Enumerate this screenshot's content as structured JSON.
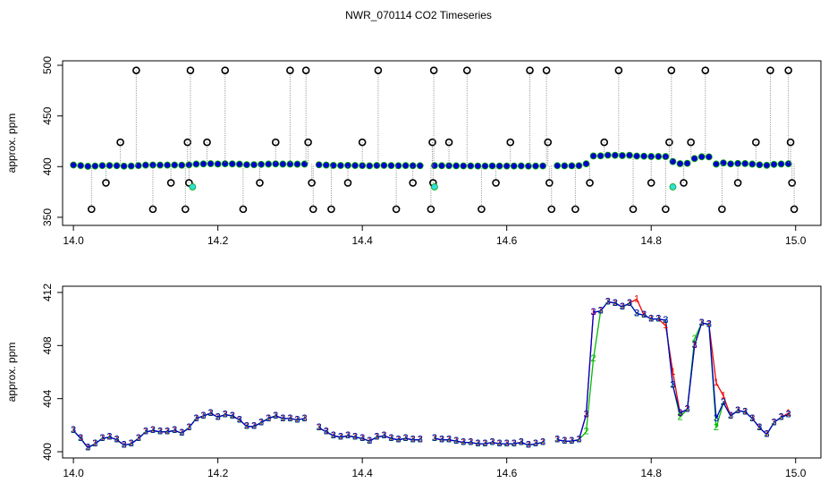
{
  "title": "NWR_070114  CO2 Timeseries",
  "chart_data": [
    {
      "type": "scatter",
      "ylabel": "approx. ppm",
      "xlim": [
        13.985,
        15.035
      ],
      "ylim": [
        342,
        504.4
      ],
      "xticks": [
        {
          "value": 14.0,
          "label": "14.0"
        },
        {
          "value": 14.2,
          "label": "14.2"
        },
        {
          "value": 14.4,
          "label": "14.4"
        },
        {
          "value": 14.6,
          "label": "14.6"
        },
        {
          "value": 14.8,
          "label": "14.8"
        },
        {
          "value": 15.0,
          "label": "15.0"
        }
      ],
      "yticks": [
        350,
        400,
        450,
        500
      ],
      "series": [
        {
          "style": "filled",
          "color": "#0000cc",
          "x": [
            14.0,
            14.01,
            14.02,
            14.03,
            14.04,
            14.05,
            14.06,
            14.07,
            14.08,
            14.09,
            14.1,
            14.11,
            14.12,
            14.13,
            14.14,
            14.15,
            14.16,
            14.17,
            14.18,
            14.19,
            14.2,
            14.21,
            14.22,
            14.23,
            14.24,
            14.25,
            14.26,
            14.27,
            14.28,
            14.29,
            14.3,
            14.31,
            14.32,
            14.33,
            14.34,
            14.35,
            14.36,
            14.37,
            14.38,
            14.39,
            14.4,
            14.41,
            14.42,
            14.43,
            14.44,
            14.45,
            14.46,
            14.47,
            14.48,
            14.49,
            14.5,
            14.51,
            14.52,
            14.53,
            14.54,
            14.55,
            14.56,
            14.57,
            14.58,
            14.59,
            14.6,
            14.61,
            14.62,
            14.63,
            14.64,
            14.65,
            14.66,
            14.67,
            14.68,
            14.69,
            14.7,
            14.71,
            14.72,
            14.73,
            14.74,
            14.75,
            14.76,
            14.77,
            14.78,
            14.79,
            14.8,
            14.81,
            14.82,
            14.83,
            14.84,
            14.85,
            14.86,
            14.87,
            14.88,
            14.89,
            14.9,
            14.91,
            14.92,
            14.93,
            14.94,
            14.95,
            14.96,
            14.97,
            14.98,
            14.99
          ],
          "values": [
            401.6,
            401.0,
            400.3,
            400.6,
            401.0,
            401.1,
            400.9,
            400.5,
            400.6,
            401.0,
            401.5,
            401.6,
            401.5,
            401.5,
            401.6,
            401.4,
            401.8,
            402.5,
            402.7,
            402.9,
            402.6,
            402.8,
            402.7,
            402.4,
            401.9,
            401.9,
            402.2,
            402.5,
            402.7,
            402.5,
            402.5,
            402.4,
            402.5,
            null,
            401.8,
            401.5,
            401.2,
            401.1,
            401.2,
            401.1,
            401.0,
            400.8,
            401.1,
            401.2,
            401.0,
            400.9,
            401.0,
            400.9,
            400.9,
            null,
            401.0,
            400.9,
            400.9,
            400.8,
            400.7,
            400.7,
            400.6,
            400.6,
            400.7,
            400.6,
            400.6,
            400.6,
            400.7,
            400.5,
            400.6,
            400.7,
            null,
            400.9,
            400.8,
            400.8,
            400.9,
            402.8,
            410.5,
            410.6,
            411.3,
            411.2,
            410.9,
            411.2,
            410.4,
            410.3,
            410.0,
            410.0,
            409.9,
            405.0,
            402.9,
            403.2,
            408.0,
            409.7,
            409.6,
            402.5,
            403.7,
            402.7,
            403.1,
            403.0,
            402.5,
            401.8,
            401.3,
            402.2,
            402.6,
            402.8
          ]
        },
        {
          "style": "open",
          "color": "#000000",
          "x": [
            14.025,
            14.045,
            14.065,
            14.087,
            14.11,
            14.135,
            14.155,
            14.158,
            14.16,
            14.162,
            14.185,
            14.21,
            14.235,
            14.258,
            14.28,
            14.3,
            14.322,
            14.325,
            14.33,
            14.332,
            14.357,
            14.38,
            14.4,
            14.422,
            14.447,
            14.47,
            14.495,
            14.497,
            14.498,
            14.499,
            14.52,
            14.545,
            14.565,
            14.585,
            14.605,
            14.632,
            14.655,
            14.657,
            14.659,
            14.662,
            14.695,
            14.715,
            14.735,
            14.755,
            14.775,
            14.8,
            14.82,
            14.825,
            14.828,
            14.845,
            14.855,
            14.875,
            14.898,
            14.92,
            14.945,
            14.965,
            14.99,
            14.993,
            14.995,
            14.998
          ],
          "values": [
            358,
            384,
            424,
            495,
            358,
            384,
            358,
            424,
            384,
            495,
            424,
            495,
            358,
            384,
            424,
            495,
            495,
            424,
            384,
            358,
            358,
            384,
            424,
            495,
            358,
            384,
            358,
            424,
            384,
            495,
            424,
            495,
            358,
            384,
            424,
            495,
            495,
            424,
            384,
            358,
            358,
            384,
            424,
            495,
            358,
            384,
            358,
            424,
            495,
            384,
            424,
            495,
            358,
            384,
            424,
            495,
            495,
            424,
            384,
            358
          ]
        },
        {
          "style": "filled",
          "color": "#33dddd",
          "x": [
            14.165,
            14.5,
            14.83
          ],
          "values": [
            380,
            380,
            380
          ]
        }
      ]
    },
    {
      "type": "line",
      "ylabel": "approx. ppm",
      "xlim": [
        13.985,
        15.035
      ],
      "ylim": [
        399.53,
        412.47
      ],
      "xticks": [
        {
          "value": 14.0,
          "label": "14.0"
        },
        {
          "value": 14.2,
          "label": "14.2"
        },
        {
          "value": 14.4,
          "label": "14.4"
        },
        {
          "value": 14.6,
          "label": "14.6"
        },
        {
          "value": 14.8,
          "label": "14.8"
        },
        {
          "value": 15.0,
          "label": "15.0"
        }
      ],
      "yticks": [
        400,
        404,
        408,
        412
      ],
      "x": [
        14.0,
        14.01,
        14.02,
        14.03,
        14.04,
        14.05,
        14.06,
        14.07,
        14.08,
        14.09,
        14.1,
        14.11,
        14.12,
        14.13,
        14.14,
        14.15,
        14.16,
        14.17,
        14.18,
        14.19,
        14.2,
        14.21,
        14.22,
        14.23,
        14.24,
        14.25,
        14.26,
        14.27,
        14.28,
        14.29,
        14.3,
        14.31,
        14.32,
        14.33,
        14.34,
        14.35,
        14.36,
        14.37,
        14.38,
        14.39,
        14.4,
        14.41,
        14.42,
        14.43,
        14.44,
        14.45,
        14.46,
        14.47,
        14.48,
        14.49,
        14.5,
        14.51,
        14.52,
        14.53,
        14.54,
        14.55,
        14.56,
        14.57,
        14.58,
        14.59,
        14.6,
        14.61,
        14.62,
        14.63,
        14.64,
        14.65,
        14.66,
        14.67,
        14.68,
        14.69,
        14.7,
        14.71,
        14.72,
        14.73,
        14.74,
        14.75,
        14.76,
        14.77,
        14.78,
        14.79,
        14.8,
        14.81,
        14.82,
        14.83,
        14.84,
        14.85,
        14.86,
        14.87,
        14.88,
        14.89,
        14.9,
        14.91,
        14.92,
        14.93,
        14.94,
        14.95,
        14.96,
        14.97,
        14.98,
        14.99
      ],
      "series": [
        {
          "marker": "1",
          "color": "#ee0000",
          "values": [
            401.6,
            401.0,
            400.3,
            400.6,
            401.0,
            401.1,
            400.9,
            400.5,
            400.6,
            401.0,
            401.5,
            401.6,
            401.5,
            401.5,
            401.6,
            401.4,
            401.8,
            402.5,
            402.7,
            402.9,
            402.6,
            402.8,
            402.7,
            402.4,
            401.9,
            401.9,
            402.2,
            402.5,
            402.7,
            402.5,
            402.5,
            402.4,
            402.5,
            null,
            401.8,
            401.5,
            401.2,
            401.1,
            401.2,
            401.1,
            401.0,
            400.8,
            401.1,
            401.2,
            401.0,
            400.9,
            401.0,
            400.9,
            400.9,
            null,
            401.0,
            400.9,
            400.9,
            400.8,
            400.7,
            400.7,
            400.6,
            400.6,
            400.7,
            400.6,
            400.6,
            400.6,
            400.7,
            400.5,
            400.6,
            400.7,
            null,
            400.9,
            400.8,
            400.8,
            400.9,
            402.8,
            410.5,
            410.6,
            411.3,
            411.2,
            410.9,
            411.2,
            411.5,
            410.3,
            410.0,
            410.0,
            409.5,
            406.0,
            402.9,
            403.2,
            408.0,
            409.7,
            409.6,
            405.2,
            404.2,
            402.7,
            403.1,
            403.0,
            402.5,
            401.8,
            401.3,
            402.2,
            402.6,
            402.9
          ]
        },
        {
          "marker": "2",
          "color": "#00bb00",
          "values": [
            401.6,
            401.0,
            400.3,
            400.6,
            401.0,
            401.1,
            400.9,
            400.5,
            400.6,
            401.0,
            401.5,
            401.6,
            401.5,
            401.5,
            401.6,
            401.4,
            401.8,
            402.5,
            402.7,
            402.9,
            402.6,
            402.8,
            402.7,
            402.4,
            401.9,
            401.9,
            402.2,
            402.5,
            402.7,
            402.5,
            402.5,
            402.4,
            402.5,
            null,
            401.8,
            401.5,
            401.2,
            401.1,
            401.2,
            401.1,
            401.0,
            400.8,
            401.1,
            401.2,
            401.0,
            400.9,
            401.0,
            400.9,
            400.9,
            null,
            401.0,
            400.9,
            400.9,
            400.8,
            400.7,
            400.7,
            400.6,
            400.6,
            400.7,
            400.6,
            400.6,
            400.6,
            400.7,
            400.5,
            400.6,
            400.7,
            null,
            400.9,
            400.8,
            400.8,
            400.9,
            401.5,
            407.0,
            410.6,
            411.3,
            411.2,
            410.9,
            411.2,
            410.4,
            410.3,
            410.0,
            410.0,
            409.9,
            405.0,
            402.6,
            403.2,
            408.5,
            409.7,
            409.6,
            401.8,
            403.7,
            402.7,
            403.1,
            403.0,
            402.5,
            401.8,
            401.3,
            402.2,
            402.6,
            402.8
          ]
        },
        {
          "marker": "3",
          "color": "#0000cc",
          "values": [
            401.6,
            401.0,
            400.3,
            400.6,
            401.0,
            401.1,
            400.9,
            400.5,
            400.6,
            401.0,
            401.5,
            401.6,
            401.5,
            401.5,
            401.6,
            401.4,
            401.8,
            402.5,
            402.7,
            402.9,
            402.6,
            402.8,
            402.7,
            402.4,
            401.9,
            401.9,
            402.2,
            402.5,
            402.7,
            402.5,
            402.5,
            402.4,
            402.5,
            null,
            401.8,
            401.5,
            401.2,
            401.1,
            401.2,
            401.1,
            401.0,
            400.8,
            401.1,
            401.2,
            401.0,
            400.9,
            401.0,
            400.9,
            400.9,
            null,
            401.0,
            400.9,
            400.9,
            400.8,
            400.7,
            400.7,
            400.6,
            400.6,
            400.7,
            400.6,
            400.6,
            400.6,
            400.7,
            400.5,
            400.6,
            400.7,
            null,
            400.9,
            400.8,
            400.8,
            400.9,
            402.8,
            410.5,
            410.6,
            411.3,
            411.2,
            410.9,
            411.2,
            410.4,
            410.3,
            410.0,
            410.0,
            409.9,
            405.0,
            402.9,
            403.2,
            408.0,
            409.7,
            409.6,
            402.5,
            403.7,
            402.7,
            403.1,
            403.0,
            402.5,
            401.8,
            401.3,
            402.2,
            402.6,
            402.8
          ]
        }
      ]
    }
  ]
}
